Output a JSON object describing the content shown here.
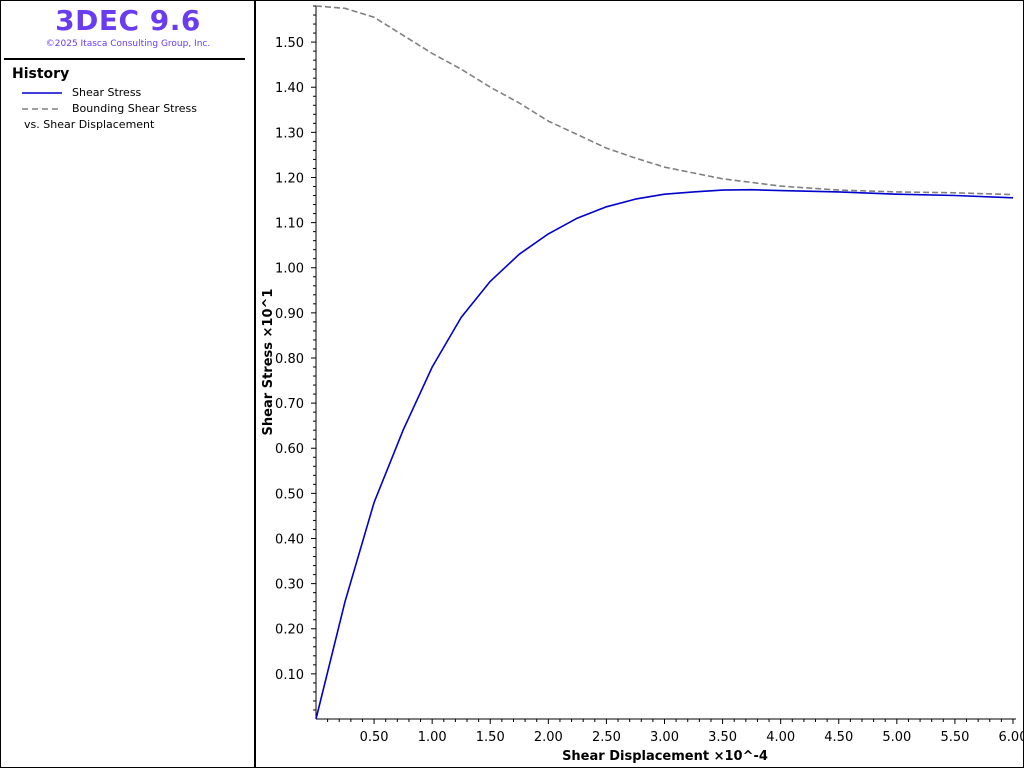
{
  "app": {
    "title": "3DEC 9.6",
    "copyright": "©2025 Itasca Consulting Group, Inc."
  },
  "legend": {
    "title": "History",
    "items": [
      {
        "label": "Shear Stress",
        "color": "#0000cc",
        "style": "solid"
      },
      {
        "label": "Bounding Shear Stress",
        "color": "#808080",
        "style": "dashed"
      }
    ],
    "vs_label": "vs. Shear Displacement"
  },
  "chart_data": {
    "type": "line",
    "xlabel": "Shear Displacement ×10^-4",
    "ylabel": "Shear Stress ×10^1",
    "xlim": [
      0,
      6.0
    ],
    "ylim": [
      0,
      1.58
    ],
    "x_ticks": [
      "0.50",
      "1.00",
      "1.50",
      "2.00",
      "2.50",
      "3.00",
      "3.50",
      "4.00",
      "4.50",
      "5.00",
      "5.50",
      "6.00"
    ],
    "y_ticks": [
      "0.10",
      "0.20",
      "0.30",
      "0.40",
      "0.50",
      "0.60",
      "0.70",
      "0.80",
      "0.90",
      "1.00",
      "1.10",
      "1.20",
      "1.30",
      "1.40",
      "1.50"
    ],
    "grid": false,
    "series": [
      {
        "name": "Shear Stress",
        "color": "#0000cc",
        "x": [
          0,
          0.25,
          0.5,
          0.75,
          1.0,
          1.25,
          1.5,
          1.75,
          2.0,
          2.25,
          2.5,
          2.75,
          3.0,
          3.25,
          3.5,
          3.75,
          4.0,
          4.5,
          5.0,
          5.5,
          6.0
        ],
        "y": [
          0.0,
          0.26,
          0.48,
          0.64,
          0.78,
          0.89,
          0.97,
          1.03,
          1.075,
          1.11,
          1.135,
          1.152,
          1.163,
          1.168,
          1.172,
          1.173,
          1.171,
          1.168,
          1.163,
          1.16,
          1.155
        ]
      },
      {
        "name": "Bounding Shear Stress",
        "color": "#808080",
        "x": [
          0,
          0.25,
          0.5,
          0.75,
          1.0,
          1.25,
          1.5,
          1.75,
          2.0,
          2.25,
          2.5,
          2.75,
          3.0,
          3.25,
          3.5,
          3.75,
          4.0,
          4.5,
          5.0,
          5.5,
          6.0
        ],
        "y": [
          1.58,
          1.575,
          1.555,
          1.515,
          1.475,
          1.44,
          1.4,
          1.365,
          1.325,
          1.295,
          1.265,
          1.243,
          1.223,
          1.21,
          1.197,
          1.189,
          1.181,
          1.172,
          1.168,
          1.166,
          1.162
        ]
      }
    ]
  }
}
